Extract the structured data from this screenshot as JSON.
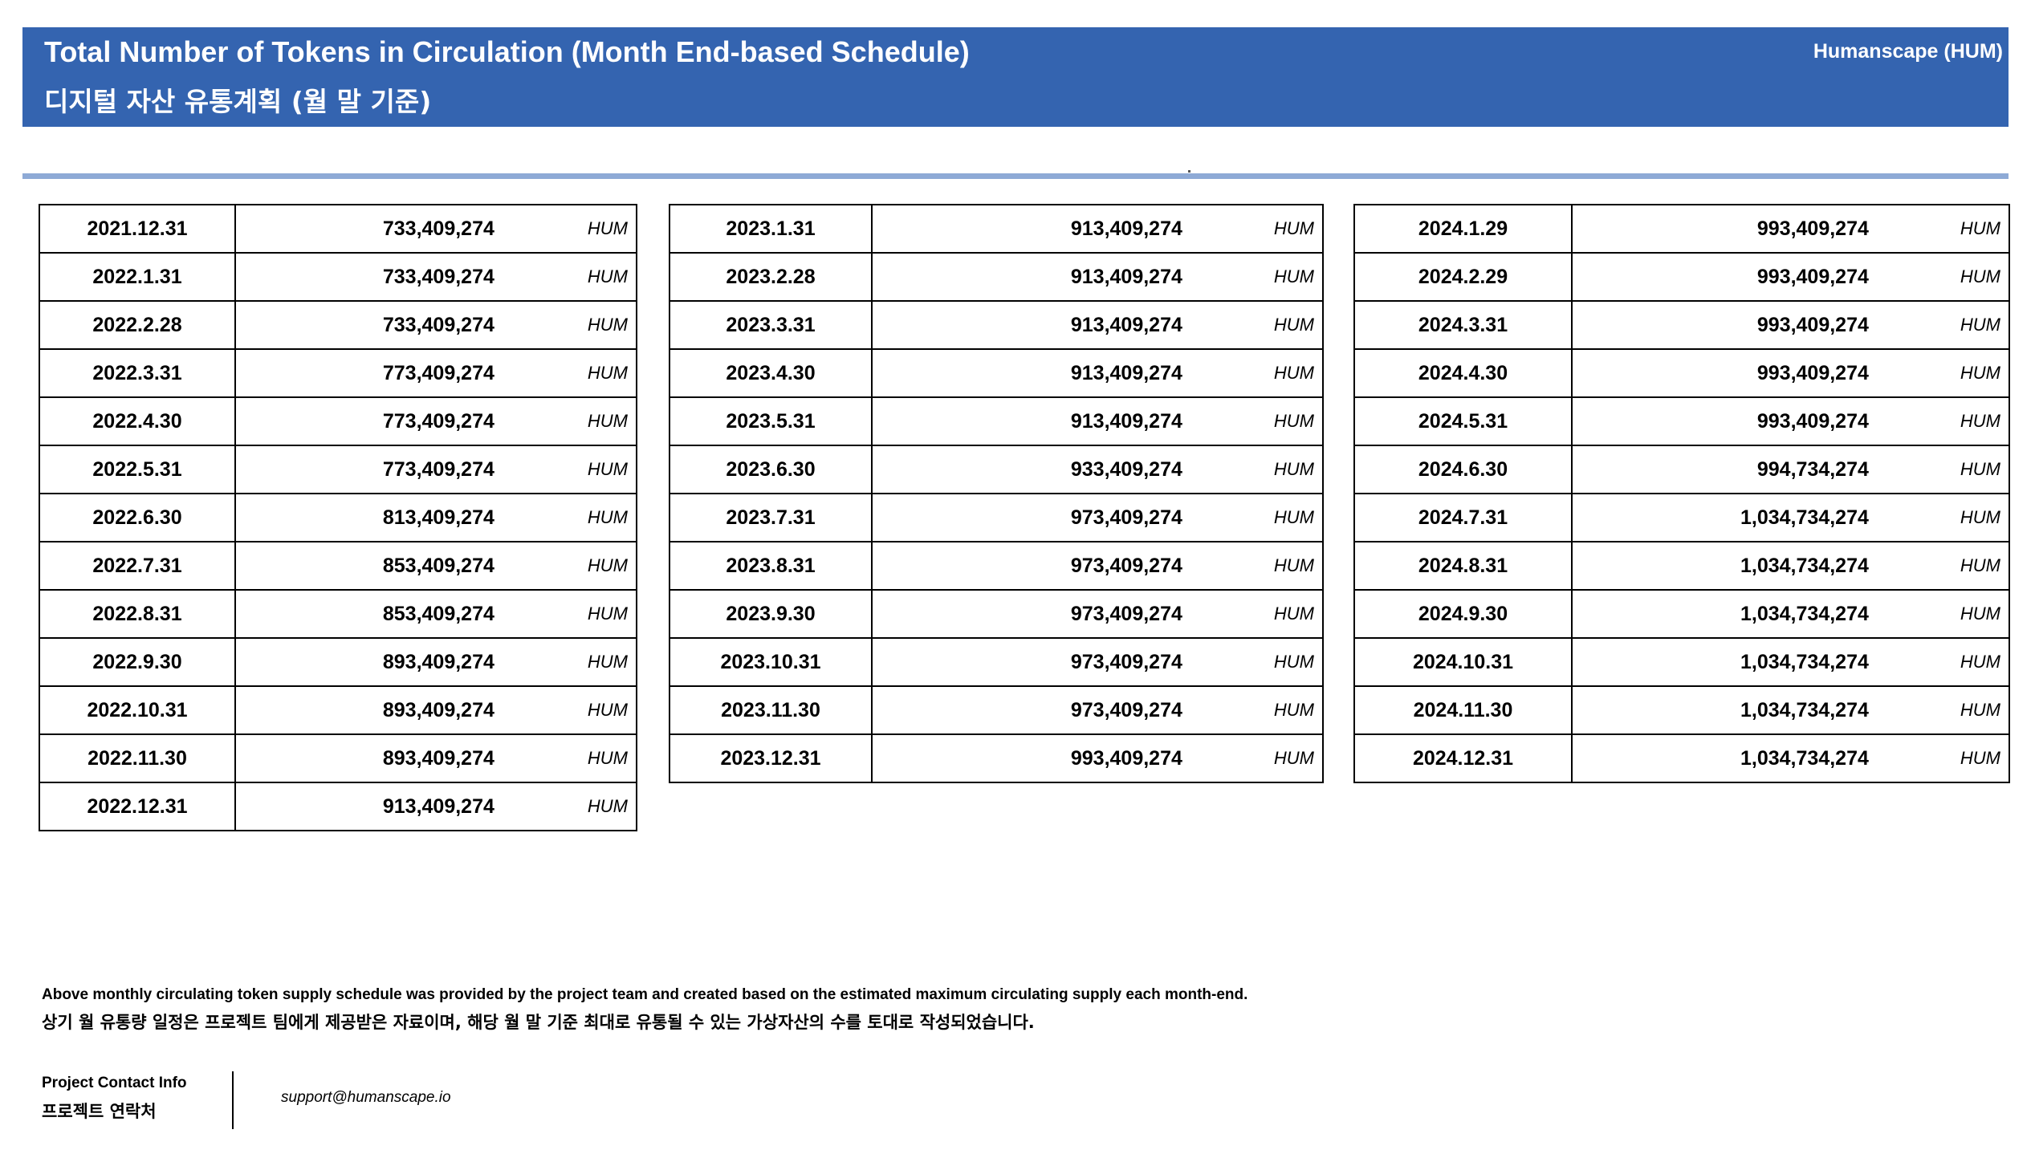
{
  "header": {
    "title_en": "Total Number of Tokens in Circulation (Month End-based Schedule)",
    "title_ko": "디지털 자산 유통계획 (월 말 기준)",
    "brand": "Humanscape (HUM)"
  },
  "tables": [
    {
      "rows": [
        {
          "date": "2021.12.31",
          "value": "733,409,274",
          "unit": "HUM"
        },
        {
          "date": "2022.1.31",
          "value": "733,409,274",
          "unit": "HUM"
        },
        {
          "date": "2022.2.28",
          "value": "733,409,274",
          "unit": "HUM"
        },
        {
          "date": "2022.3.31",
          "value": "773,409,274",
          "unit": "HUM"
        },
        {
          "date": "2022.4.30",
          "value": "773,409,274",
          "unit": "HUM"
        },
        {
          "date": "2022.5.31",
          "value": "773,409,274",
          "unit": "HUM"
        },
        {
          "date": "2022.6.30",
          "value": "813,409,274",
          "unit": "HUM"
        },
        {
          "date": "2022.7.31",
          "value": "853,409,274",
          "unit": "HUM"
        },
        {
          "date": "2022.8.31",
          "value": "853,409,274",
          "unit": "HUM"
        },
        {
          "date": "2022.9.30",
          "value": "893,409,274",
          "unit": "HUM"
        },
        {
          "date": "2022.10.31",
          "value": "893,409,274",
          "unit": "HUM"
        },
        {
          "date": "2022.11.30",
          "value": "893,409,274",
          "unit": "HUM"
        },
        {
          "date": "2022.12.31",
          "value": "913,409,274",
          "unit": "HUM"
        }
      ]
    },
    {
      "rows": [
        {
          "date": "2023.1.31",
          "value": "913,409,274",
          "unit": "HUM"
        },
        {
          "date": "2023.2.28",
          "value": "913,409,274",
          "unit": "HUM"
        },
        {
          "date": "2023.3.31",
          "value": "913,409,274",
          "unit": "HUM"
        },
        {
          "date": "2023.4.30",
          "value": "913,409,274",
          "unit": "HUM"
        },
        {
          "date": "2023.5.31",
          "value": "913,409,274",
          "unit": "HUM"
        },
        {
          "date": "2023.6.30",
          "value": "933,409,274",
          "unit": "HUM"
        },
        {
          "date": "2023.7.31",
          "value": "973,409,274",
          "unit": "HUM"
        },
        {
          "date": "2023.8.31",
          "value": "973,409,274",
          "unit": "HUM"
        },
        {
          "date": "2023.9.30",
          "value": "973,409,274",
          "unit": "HUM"
        },
        {
          "date": "2023.10.31",
          "value": "973,409,274",
          "unit": "HUM"
        },
        {
          "date": "2023.11.30",
          "value": "973,409,274",
          "unit": "HUM"
        },
        {
          "date": "2023.12.31",
          "value": "993,409,274",
          "unit": "HUM"
        }
      ]
    },
    {
      "rows": [
        {
          "date": "2024.1.29",
          "value": "993,409,274",
          "unit": "HUM"
        },
        {
          "date": "2024.2.29",
          "value": "993,409,274",
          "unit": "HUM"
        },
        {
          "date": "2024.3.31",
          "value": "993,409,274",
          "unit": "HUM"
        },
        {
          "date": "2024.4.30",
          "value": "993,409,274",
          "unit": "HUM"
        },
        {
          "date": "2024.5.31",
          "value": "993,409,274",
          "unit": "HUM"
        },
        {
          "date": "2024.6.30",
          "value": "994,734,274",
          "unit": "HUM"
        },
        {
          "date": "2024.7.31",
          "value": "1,034,734,274",
          "unit": "HUM"
        },
        {
          "date": "2024.8.31",
          "value": "1,034,734,274",
          "unit": "HUM"
        },
        {
          "date": "2024.9.30",
          "value": "1,034,734,274",
          "unit": "HUM"
        },
        {
          "date": "2024.10.31",
          "value": "1,034,734,274",
          "unit": "HUM"
        },
        {
          "date": "2024.11.30",
          "value": "1,034,734,274",
          "unit": "HUM"
        },
        {
          "date": "2024.12.31",
          "value": "1,034,734,274",
          "unit": "HUM"
        }
      ]
    }
  ],
  "notes": {
    "en": "Above monthly circulating token supply schedule was provided by the project team and created based on the estimated maximum circulating supply each month-end.",
    "ko": "상기 월 유통량 일정은 프로젝트 팀에게 제공받은 자료이며, 해당 월 말 기준 최대로 유통될 수 있는 가상자산의 수를 토대로 작성되었습니다."
  },
  "contact": {
    "label_en": "Project Contact Info",
    "label_ko": "프로젝트 연락처",
    "email": "support@humanscape.io"
  }
}
